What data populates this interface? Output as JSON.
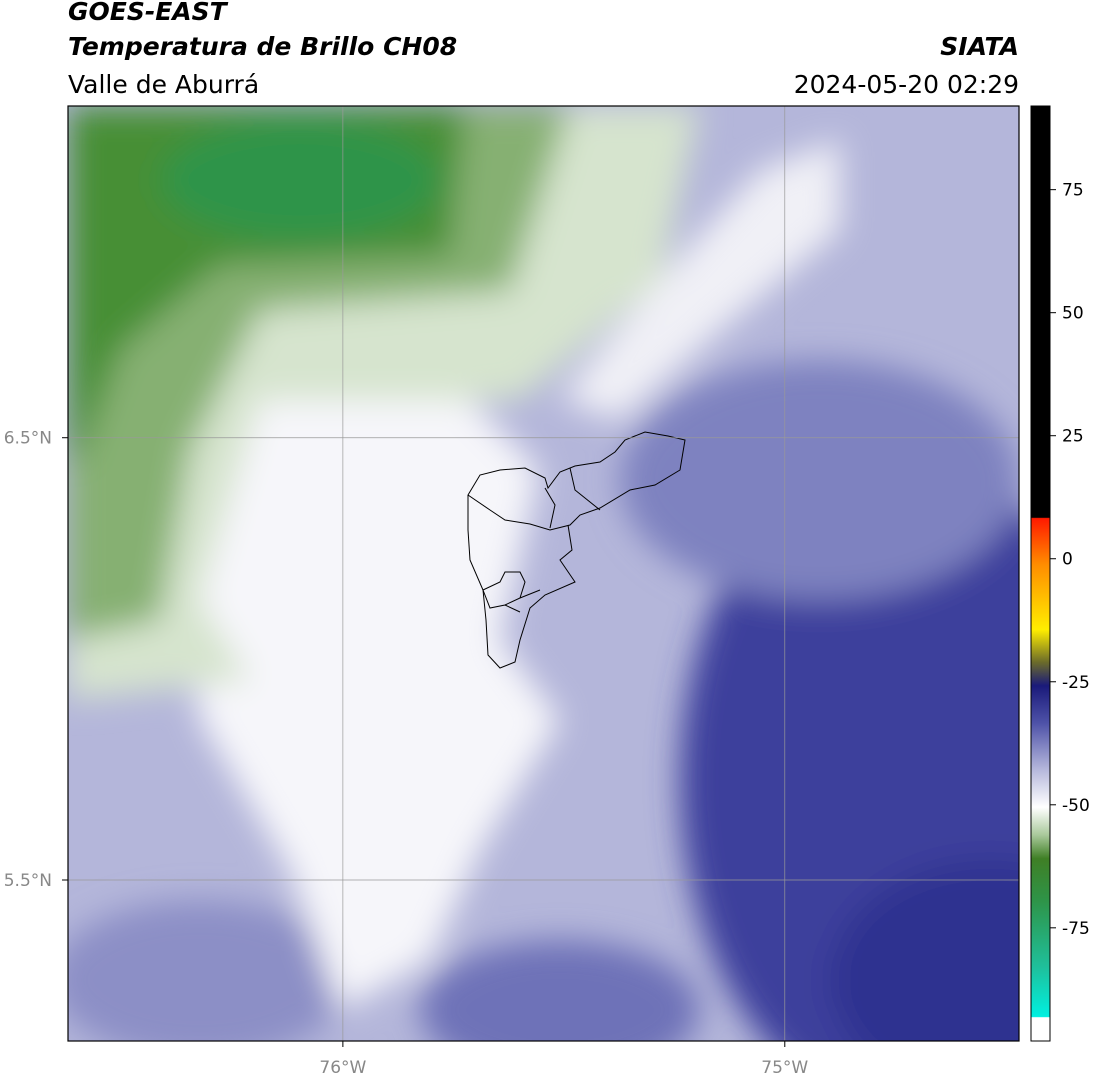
{
  "header": {
    "title": "GOES-EAST",
    "subtitle": "Temperatura de Brillo CH08",
    "region": "Valle de Aburrá",
    "source": "SIATA",
    "datetime": "2024-05-20 02:29"
  },
  "map": {
    "xlim": [
      -76.622,
      -74.47
    ],
    "ylim": [
      5.136,
      7.25
    ],
    "xticks": [
      {
        "value": -76,
        "label": "76°W"
      },
      {
        "value": -75,
        "label": "75°W"
      }
    ],
    "yticks": [
      {
        "value": 6.5,
        "label": "6.5°N"
      },
      {
        "value": 5.5,
        "label": "5.5°N"
      }
    ],
    "grid": true
  },
  "colorbar": {
    "lim": [
      -98,
      92
    ],
    "ticks": [
      75,
      50,
      25,
      0,
      -25,
      -50,
      -75
    ]
  }
}
